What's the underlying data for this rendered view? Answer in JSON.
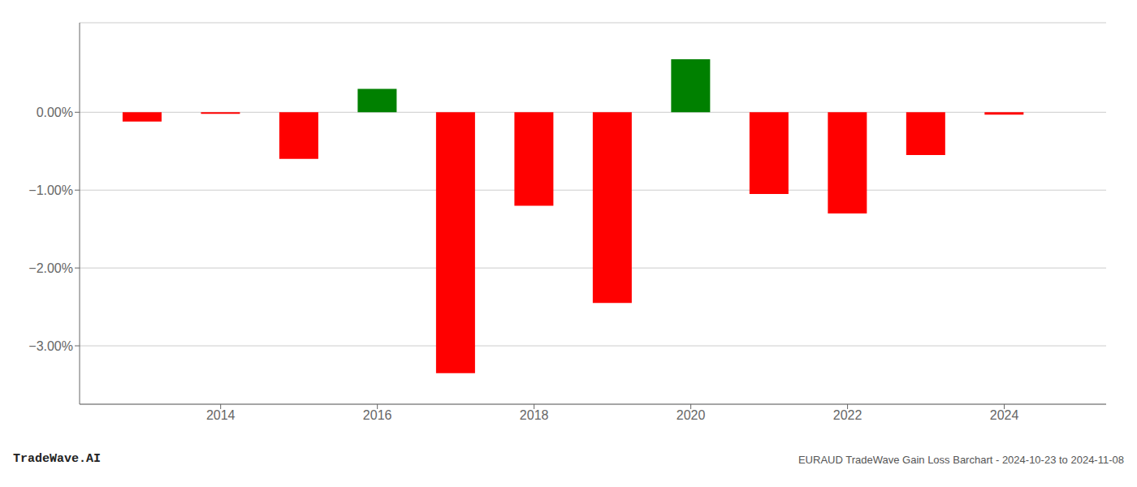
{
  "chart_data": {
    "type": "bar",
    "x": [
      2013,
      2014,
      2015,
      2016,
      2017,
      2018,
      2019,
      2020,
      2021,
      2022,
      2023,
      2024
    ],
    "values": [
      -0.0012,
      -0.0002,
      -0.006,
      0.003,
      -0.0335,
      -0.012,
      -0.0245,
      0.0068,
      -0.0105,
      -0.013,
      -0.0055,
      -0.0003
    ],
    "colors": [
      "red",
      "red",
      "red",
      "green",
      "red",
      "red",
      "red",
      "green",
      "red",
      "red",
      "red",
      "red"
    ],
    "xlim": [
      2012.2,
      2025.3
    ],
    "xticks": [
      2014,
      2016,
      2018,
      2020,
      2022,
      2024
    ],
    "ylim": [
      -0.0375,
      0.0115
    ],
    "yticks": [
      {
        "value": 0.0,
        "label": "0.00%"
      },
      {
        "value": -0.01,
        "label": "−1.00%"
      },
      {
        "value": -0.02,
        "label": "−2.00%"
      },
      {
        "value": -0.03,
        "label": "−3.00%"
      }
    ],
    "grid": true,
    "annotations": [
      "TradeWave.AI",
      "EURAUD TradeWave Gain Loss Barchart - 2024-10-23 to 2024-11-08"
    ]
  }
}
